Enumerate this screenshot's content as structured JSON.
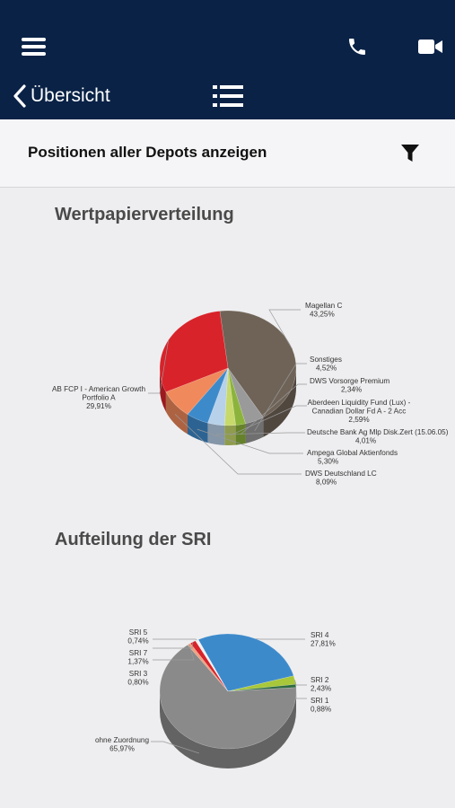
{
  "header": {
    "back_label": "Übersicht",
    "icons": [
      "menu-icon",
      "phone-icon",
      "video-icon",
      "chevron-left-icon",
      "list-icon"
    ],
    "background": "#0a2246"
  },
  "subbar": {
    "title": "Positionen aller Depots anzeigen",
    "icon": "filter-icon"
  },
  "chart_data": [
    {
      "type": "pie",
      "title": "Wertpapierverteilung",
      "slices": [
        {
          "label": "Magellan C",
          "value": 43.25,
          "value_label": "43,25%",
          "color": "#6f6357"
        },
        {
          "label": "Sonstiges",
          "value": 4.52,
          "value_label": "4,52%",
          "color": "#9a9a9a"
        },
        {
          "label": "DWS Vorsorge Premium",
          "value": 2.34,
          "value_label": "2,34%",
          "color": "#8cb43c"
        },
        {
          "label": "Aberdeen Liquidity Fund (Lux) - Canadian Dollar Fd A - 2 Acc",
          "value": 2.59,
          "value_label": "2,59%",
          "color": "#c7d96b"
        },
        {
          "label": "Deutsche Bank Ag Mlp Disk.Zert (15.06.05)",
          "value": 4.01,
          "value_label": "4,01%",
          "color": "#b7d1ea"
        },
        {
          "label": "Ampega Global Aktienfonds",
          "value": 5.3,
          "value_label": "5,30%",
          "color": "#3d8acb"
        },
        {
          "label": "DWS Deutschland LC",
          "value": 8.09,
          "value_label": "8,09%",
          "color": "#f08a5c"
        },
        {
          "label": "AB FCP I - American Growth Portfolio A",
          "value": 29.91,
          "value_label": "29,91%",
          "color": "#d8232a"
        }
      ]
    },
    {
      "type": "pie",
      "title": "Aufteilung der SRI",
      "slices": [
        {
          "label": "SRI 4",
          "value": 27.81,
          "value_label": "27,81%",
          "color": "#3d8acb"
        },
        {
          "label": "SRI 2",
          "value": 2.43,
          "value_label": "2,43%",
          "color": "#a8c73a"
        },
        {
          "label": "SRI 1",
          "value": 0.88,
          "value_label": "0,88%",
          "color": "#2e6b40"
        },
        {
          "label": "ohne Zuordnung",
          "value": 65.97,
          "value_label": "65,97%",
          "color": "#8a8a8a"
        },
        {
          "label": "SRI 3",
          "value": 0.8,
          "value_label": "0,80%",
          "color": "#f0a080"
        },
        {
          "label": "SRI 7",
          "value": 1.37,
          "value_label": "1,37%",
          "color": "#d8232a"
        },
        {
          "label": "SRI 5",
          "value": 0.74,
          "value_label": "0,74%",
          "color": "#f2f2f2"
        }
      ]
    }
  ]
}
